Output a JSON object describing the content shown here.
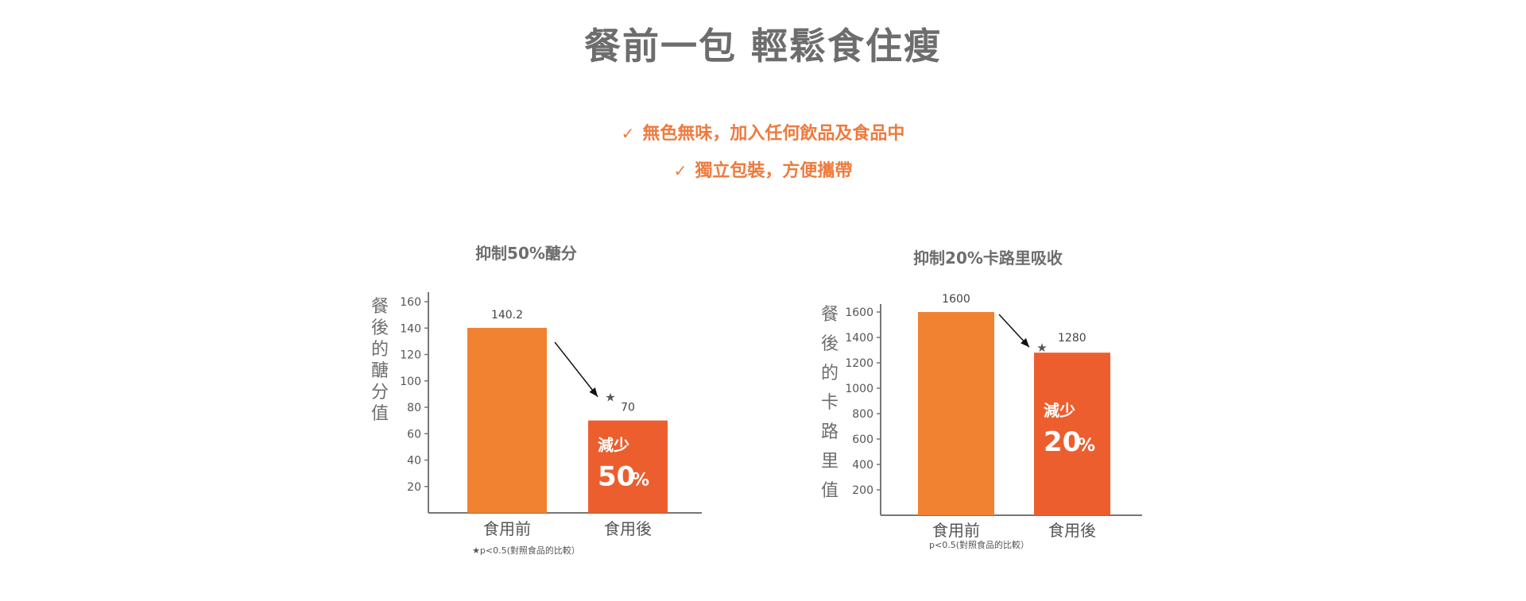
{
  "header": {
    "title": "餐前一包 輕鬆食住瘦",
    "bullets": [
      {
        "icon": "check-icon",
        "check": "✓",
        "text": "無色無味，加入任何飲品及食品中"
      },
      {
        "icon": "check-icon",
        "check": "✓",
        "text": "獨立包裝，方便攜帶"
      }
    ]
  },
  "colors": {
    "bar_before": "#f08232",
    "bar_after": "#ec5e2d",
    "text_gray": "#6d6d6d",
    "accent": "#ee7a3e"
  },
  "chart_data": [
    {
      "type": "bar",
      "title": "抑制50%醣分",
      "ylabel": "餐後的醣分值",
      "categories": [
        "食用前",
        "食用後"
      ],
      "values": [
        140.2,
        70
      ],
      "value_labels": [
        "140.2",
        "70"
      ],
      "yticks": [
        20,
        40,
        60,
        80,
        100,
        120,
        140,
        160
      ],
      "ylim": [
        0,
        170
      ],
      "bar_note_top": "減少",
      "bar_note_big": "50",
      "bar_note_pct": "%",
      "star": "★",
      "footnote": "★p<0.5(對照食品的比較）"
    },
    {
      "type": "bar",
      "title": "抑制20%卡路里吸收",
      "ylabel": "餐後的卡路里值",
      "categories": [
        "食用前",
        "食用後"
      ],
      "values": [
        1600,
        1280
      ],
      "value_labels": [
        "1600",
        "1280"
      ],
      "yticks": [
        200,
        400,
        600,
        800,
        1000,
        1200,
        1400,
        1600
      ],
      "ylim": [
        0,
        1670
      ],
      "bar_note_top": "減少",
      "bar_note_big": "20",
      "bar_note_pct": "%",
      "star": "★",
      "footnote": "p<0.5(對照食品的比較）"
    }
  ]
}
